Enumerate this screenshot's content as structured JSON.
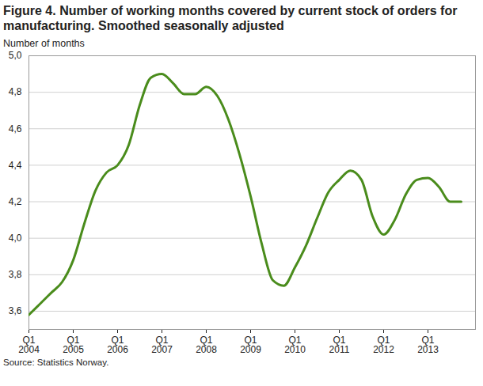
{
  "chart_data": {
    "type": "line",
    "title": "Figure 4. Number of working months covered by current stock of orders for manufacturing. Smoothed seasonally adjusted",
    "y_label": "Number of months",
    "source": "Source: Statistics Norway.",
    "categories": [
      "Q1 2004",
      null,
      null,
      null,
      "Q1 2005",
      null,
      null,
      null,
      "Q1 2006",
      null,
      null,
      null,
      "Q1 2007",
      null,
      null,
      null,
      "Q1 2008",
      null,
      null,
      null,
      "Q1 2009",
      null,
      null,
      null,
      "Q1 2010",
      null,
      null,
      null,
      "Q1 2011",
      null,
      null,
      null,
      "Q1 2012",
      null,
      null,
      null,
      "Q1 2013",
      null,
      null,
      null
    ],
    "values": [
      3.58,
      3.64,
      3.7,
      3.76,
      3.88,
      4.08,
      4.26,
      4.36,
      4.4,
      4.51,
      4.73,
      4.88,
      4.9,
      4.85,
      4.79,
      4.79,
      4.83,
      4.78,
      4.65,
      4.46,
      4.23,
      3.97,
      3.77,
      3.74,
      3.84,
      3.96,
      4.11,
      4.25,
      4.32,
      4.37,
      4.32,
      4.12,
      4.02,
      4.1,
      4.24,
      4.32,
      4.33,
      4.28,
      4.2,
      4.2
    ],
    "color": "#4a8c1c",
    "ylim": [
      3.5,
      5.0
    ],
    "yticks": [
      {
        "value": 3.6,
        "label": "3,6"
      },
      {
        "value": 3.8,
        "label": "3,8"
      },
      {
        "value": 4.0,
        "label": "4,0"
      },
      {
        "value": 4.2,
        "label": "4,2"
      },
      {
        "value": 4.4,
        "label": "4,4"
      },
      {
        "value": 4.6,
        "label": "4,6"
      },
      {
        "value": 4.8,
        "label": "4,8"
      },
      {
        "value": 5.0,
        "label": "5,0"
      }
    ],
    "grid": true
  }
}
